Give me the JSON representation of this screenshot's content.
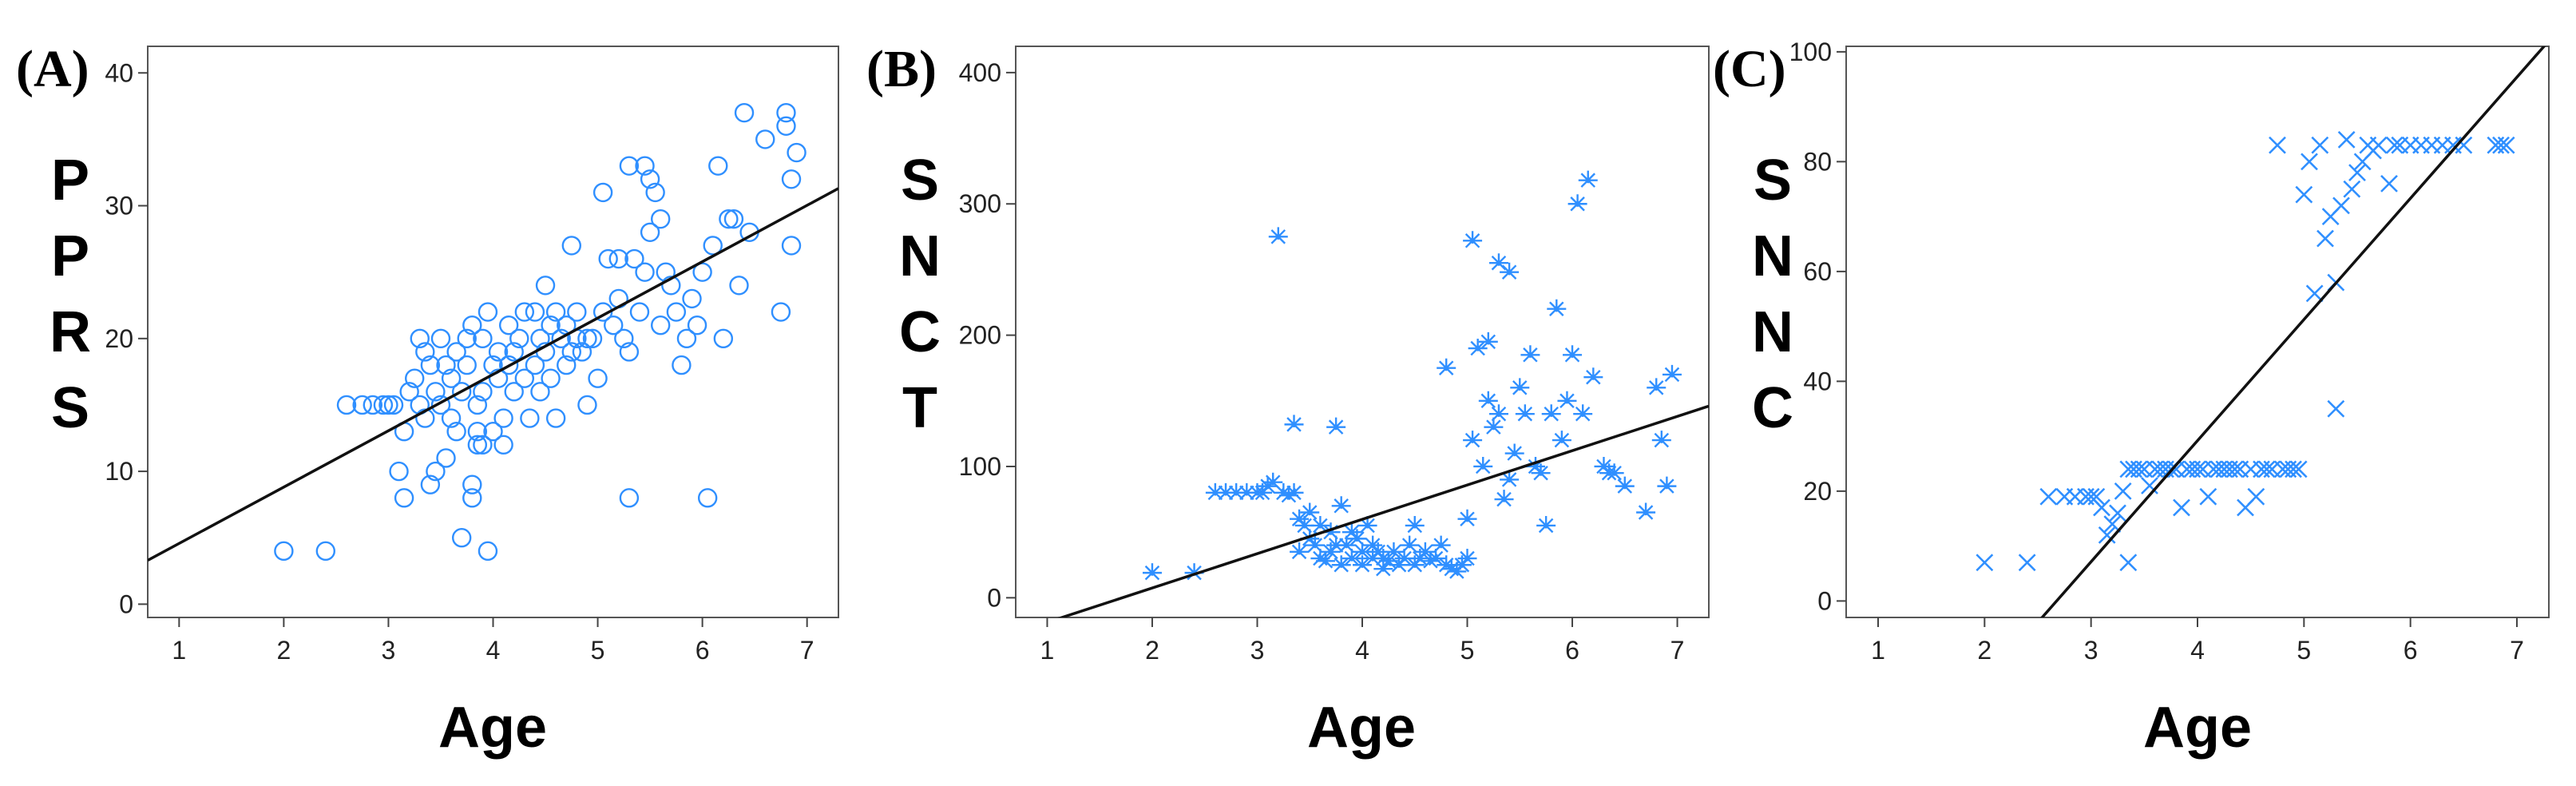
{
  "colors": {
    "marker": "#2f8fff",
    "fit": "#111111"
  },
  "chart_data": [
    {
      "panel": "(A)",
      "type": "scatter",
      "marker": "circle",
      "xlabel": "Age",
      "ylabel": "PPRS",
      "xlim": [
        0.7,
        7.3
      ],
      "ylim": [
        -1,
        42
      ],
      "xticks": [
        "1",
        "2",
        "3",
        "4",
        "5",
        "6",
        "7"
      ],
      "yticks": [
        "0",
        "10",
        "20",
        "30",
        "40"
      ],
      "fit": {
        "x": [
          0.7,
          7.3
        ],
        "y": [
          3.3,
          31.3
        ]
      },
      "points": [
        [
          2.0,
          4
        ],
        [
          2.4,
          4
        ],
        [
          2.6,
          15
        ],
        [
          2.75,
          15
        ],
        [
          2.85,
          15
        ],
        [
          2.95,
          15
        ],
        [
          3.0,
          15
        ],
        [
          3.05,
          15
        ],
        [
          3.1,
          10
        ],
        [
          3.15,
          13
        ],
        [
          3.15,
          8
        ],
        [
          3.2,
          16
        ],
        [
          3.25,
          17
        ],
        [
          3.3,
          15
        ],
        [
          3.3,
          20
        ],
        [
          3.35,
          19
        ],
        [
          3.35,
          14
        ],
        [
          3.4,
          18
        ],
        [
          3.4,
          9
        ],
        [
          3.45,
          10
        ],
        [
          3.45,
          16
        ],
        [
          3.5,
          20
        ],
        [
          3.5,
          15
        ],
        [
          3.55,
          11
        ],
        [
          3.55,
          18
        ],
        [
          3.6,
          17
        ],
        [
          3.6,
          14
        ],
        [
          3.65,
          19
        ],
        [
          3.65,
          13
        ],
        [
          3.7,
          5
        ],
        [
          3.7,
          16
        ],
        [
          3.75,
          20
        ],
        [
          3.75,
          18
        ],
        [
          3.8,
          8
        ],
        [
          3.8,
          9
        ],
        [
          3.8,
          21
        ],
        [
          3.85,
          15
        ],
        [
          3.85,
          13
        ],
        [
          3.85,
          12
        ],
        [
          3.9,
          20
        ],
        [
          3.9,
          16
        ],
        [
          3.9,
          12
        ],
        [
          3.95,
          4
        ],
        [
          3.95,
          22
        ],
        [
          4.0,
          18
        ],
        [
          4.0,
          13
        ],
        [
          4.05,
          19
        ],
        [
          4.05,
          17
        ],
        [
          4.1,
          12
        ],
        [
          4.1,
          14
        ],
        [
          4.15,
          21
        ],
        [
          4.15,
          18
        ],
        [
          4.2,
          19
        ],
        [
          4.2,
          16
        ],
        [
          4.25,
          20
        ],
        [
          4.3,
          17
        ],
        [
          4.3,
          22
        ],
        [
          4.35,
          14
        ],
        [
          4.4,
          18
        ],
        [
          4.4,
          22
        ],
        [
          4.45,
          20
        ],
        [
          4.45,
          16
        ],
        [
          4.5,
          19
        ],
        [
          4.5,
          24
        ],
        [
          4.55,
          21
        ],
        [
          4.55,
          17
        ],
        [
          4.6,
          22
        ],
        [
          4.6,
          14
        ],
        [
          4.65,
          20
        ],
        [
          4.7,
          18
        ],
        [
          4.7,
          21
        ],
        [
          4.75,
          19
        ],
        [
          4.75,
          27
        ],
        [
          4.8,
          22
        ],
        [
          4.8,
          20
        ],
        [
          4.85,
          19
        ],
        [
          4.9,
          20
        ],
        [
          4.9,
          15
        ],
        [
          4.95,
          20
        ],
        [
          5.0,
          17
        ],
        [
          5.05,
          31
        ],
        [
          5.05,
          22
        ],
        [
          5.1,
          26
        ],
        [
          5.15,
          21
        ],
        [
          5.2,
          23
        ],
        [
          5.2,
          26
        ],
        [
          5.25,
          20
        ],
        [
          5.3,
          19
        ],
        [
          5.3,
          33
        ],
        [
          5.3,
          8
        ],
        [
          5.35,
          26
        ],
        [
          5.4,
          22
        ],
        [
          5.45,
          25
        ],
        [
          5.45,
          33
        ],
        [
          5.5,
          32
        ],
        [
          5.5,
          28
        ],
        [
          5.55,
          31
        ],
        [
          5.6,
          21
        ],
        [
          5.6,
          29
        ],
        [
          5.65,
          25
        ],
        [
          5.7,
          24
        ],
        [
          5.75,
          22
        ],
        [
          5.8,
          18
        ],
        [
          5.85,
          20
        ],
        [
          5.9,
          23
        ],
        [
          5.95,
          21
        ],
        [
          6.0,
          25
        ],
        [
          6.05,
          8
        ],
        [
          6.1,
          27
        ],
        [
          6.15,
          33
        ],
        [
          6.2,
          20
        ],
        [
          6.25,
          29
        ],
        [
          6.3,
          29
        ],
        [
          6.35,
          24
        ],
        [
          6.4,
          37
        ],
        [
          6.45,
          28
        ],
        [
          6.6,
          35
        ],
        [
          6.75,
          22
        ],
        [
          6.8,
          36
        ],
        [
          6.8,
          37
        ],
        [
          6.85,
          27
        ],
        [
          6.85,
          32
        ],
        [
          6.9,
          34
        ]
      ]
    },
    {
      "panel": "(B)",
      "type": "scatter",
      "marker": "star",
      "xlabel": "Age",
      "ylabel": "SNCT",
      "xlim": [
        0.7,
        7.3
      ],
      "ylim": [
        -15,
        420
      ],
      "xticks": [
        "1",
        "2",
        "3",
        "4",
        "5",
        "6",
        "7"
      ],
      "yticks": [
        "0",
        "100",
        "200",
        "300",
        "400"
      ],
      "fit": {
        "x": [
          0.95,
          7.3
        ],
        "y": [
          -20,
          146
        ]
      },
      "points": [
        [
          2.0,
          19
        ],
        [
          2.4,
          19
        ],
        [
          2.6,
          80
        ],
        [
          2.7,
          80
        ],
        [
          2.8,
          80
        ],
        [
          2.9,
          80
        ],
        [
          3.0,
          80
        ],
        [
          3.05,
          80
        ],
        [
          3.1,
          85
        ],
        [
          3.15,
          88
        ],
        [
          3.2,
          275
        ],
        [
          3.25,
          80
        ],
        [
          3.3,
          78
        ],
        [
          3.35,
          132
        ],
        [
          3.35,
          80
        ],
        [
          3.4,
          60
        ],
        [
          3.4,
          35
        ],
        [
          3.45,
          55
        ],
        [
          3.5,
          45
        ],
        [
          3.5,
          65
        ],
        [
          3.55,
          40
        ],
        [
          3.6,
          30
        ],
        [
          3.6,
          55
        ],
        [
          3.65,
          28
        ],
        [
          3.7,
          50
        ],
        [
          3.7,
          35
        ],
        [
          3.75,
          40
        ],
        [
          3.75,
          130
        ],
        [
          3.8,
          25
        ],
        [
          3.8,
          70
        ],
        [
          3.85,
          40
        ],
        [
          3.9,
          50
        ],
        [
          3.9,
          30
        ],
        [
          3.95,
          45
        ],
        [
          4.0,
          35
        ],
        [
          4.0,
          25
        ],
        [
          4.05,
          55
        ],
        [
          4.1,
          30
        ],
        [
          4.1,
          40
        ],
        [
          4.15,
          35
        ],
        [
          4.2,
          30
        ],
        [
          4.2,
          22
        ],
        [
          4.25,
          28
        ],
        [
          4.3,
          35
        ],
        [
          4.35,
          25
        ],
        [
          4.4,
          30
        ],
        [
          4.45,
          40
        ],
        [
          4.5,
          25
        ],
        [
          4.5,
          55
        ],
        [
          4.55,
          30
        ],
        [
          4.6,
          35
        ],
        [
          4.65,
          28
        ],
        [
          4.7,
          30
        ],
        [
          4.75,
          40
        ],
        [
          4.8,
          175
        ],
        [
          4.8,
          25
        ],
        [
          4.85,
          22
        ],
        [
          4.9,
          20
        ],
        [
          4.95,
          25
        ],
        [
          5.0,
          60
        ],
        [
          5.0,
          30
        ],
        [
          5.05,
          272
        ],
        [
          5.05,
          120
        ],
        [
          5.1,
          190
        ],
        [
          5.15,
          100
        ],
        [
          5.2,
          195
        ],
        [
          5.2,
          150
        ],
        [
          5.25,
          130
        ],
        [
          5.3,
          255
        ],
        [
          5.3,
          140
        ],
        [
          5.35,
          75
        ],
        [
          5.4,
          248
        ],
        [
          5.4,
          90
        ],
        [
          5.45,
          110
        ],
        [
          5.5,
          160
        ],
        [
          5.55,
          140
        ],
        [
          5.6,
          185
        ],
        [
          5.65,
          100
        ],
        [
          5.7,
          95
        ],
        [
          5.75,
          55
        ],
        [
          5.8,
          140
        ],
        [
          5.85,
          220
        ],
        [
          5.9,
          120
        ],
        [
          5.95,
          150
        ],
        [
          6.0,
          185
        ],
        [
          6.05,
          300
        ],
        [
          6.1,
          140
        ],
        [
          6.15,
          318
        ],
        [
          6.2,
          168
        ],
        [
          6.3,
          100
        ],
        [
          6.35,
          95
        ],
        [
          6.4,
          95
        ],
        [
          6.5,
          85
        ],
        [
          6.7,
          65
        ],
        [
          6.8,
          160
        ],
        [
          6.85,
          120
        ],
        [
          6.9,
          85
        ],
        [
          6.95,
          170
        ]
      ]
    },
    {
      "panel": "(C)",
      "type": "scatter",
      "marker": "x",
      "xlabel": "Age",
      "ylabel": "SNNC",
      "xlim": [
        0.7,
        7.3
      ],
      "ylim": [
        -3,
        101
      ],
      "xticks": [
        "1",
        "2",
        "3",
        "4",
        "5",
        "6",
        "7"
      ],
      "yticks": [
        "0",
        "20",
        "40",
        "60",
        "80",
        "100"
      ],
      "fit": {
        "x": [
          2.45,
          7.3
        ],
        "y": [
          -5,
          102
        ]
      },
      "points": [
        [
          2.0,
          7
        ],
        [
          2.4,
          7
        ],
        [
          2.6,
          19
        ],
        [
          2.75,
          19
        ],
        [
          2.85,
          19
        ],
        [
          2.95,
          19
        ],
        [
          3.0,
          19
        ],
        [
          3.05,
          19
        ],
        [
          3.1,
          17
        ],
        [
          3.15,
          12
        ],
        [
          3.2,
          14
        ],
        [
          3.25,
          16
        ],
        [
          3.3,
          20
        ],
        [
          3.35,
          7
        ],
        [
          3.35,
          24
        ],
        [
          3.4,
          24
        ],
        [
          3.45,
          24
        ],
        [
          3.5,
          24
        ],
        [
          3.55,
          21
        ],
        [
          3.6,
          24
        ],
        [
          3.65,
          24
        ],
        [
          3.7,
          24
        ],
        [
          3.75,
          24
        ],
        [
          3.8,
          24
        ],
        [
          3.85,
          17
        ],
        [
          3.9,
          24
        ],
        [
          3.95,
          24
        ],
        [
          4.0,
          24
        ],
        [
          4.05,
          24
        ],
        [
          4.1,
          19
        ],
        [
          4.15,
          24
        ],
        [
          4.2,
          24
        ],
        [
          4.25,
          24
        ],
        [
          4.3,
          24
        ],
        [
          4.35,
          24
        ],
        [
          4.4,
          24
        ],
        [
          4.45,
          17
        ],
        [
          4.5,
          24
        ],
        [
          4.55,
          19
        ],
        [
          4.6,
          24
        ],
        [
          4.65,
          24
        ],
        [
          4.7,
          24
        ],
        [
          4.75,
          83
        ],
        [
          4.8,
          24
        ],
        [
          4.85,
          24
        ],
        [
          4.9,
          24
        ],
        [
          4.95,
          24
        ],
        [
          5.0,
          74
        ],
        [
          5.05,
          80
        ],
        [
          5.1,
          56
        ],
        [
          5.15,
          83
        ],
        [
          5.2,
          66
        ],
        [
          5.25,
          70
        ],
        [
          5.3,
          58
        ],
        [
          5.3,
          35
        ],
        [
          5.35,
          72
        ],
        [
          5.4,
          84
        ],
        [
          5.45,
          75
        ],
        [
          5.5,
          78
        ],
        [
          5.55,
          80
        ],
        [
          5.6,
          83
        ],
        [
          5.65,
          82
        ],
        [
          5.7,
          83
        ],
        [
          5.8,
          76
        ],
        [
          5.85,
          83
        ],
        [
          5.9,
          83
        ],
        [
          6.0,
          83
        ],
        [
          6.1,
          83
        ],
        [
          6.2,
          83
        ],
        [
          6.3,
          83
        ],
        [
          6.4,
          83
        ],
        [
          6.5,
          83
        ],
        [
          6.8,
          83
        ],
        [
          6.85,
          83
        ],
        [
          6.9,
          83
        ]
      ]
    }
  ]
}
